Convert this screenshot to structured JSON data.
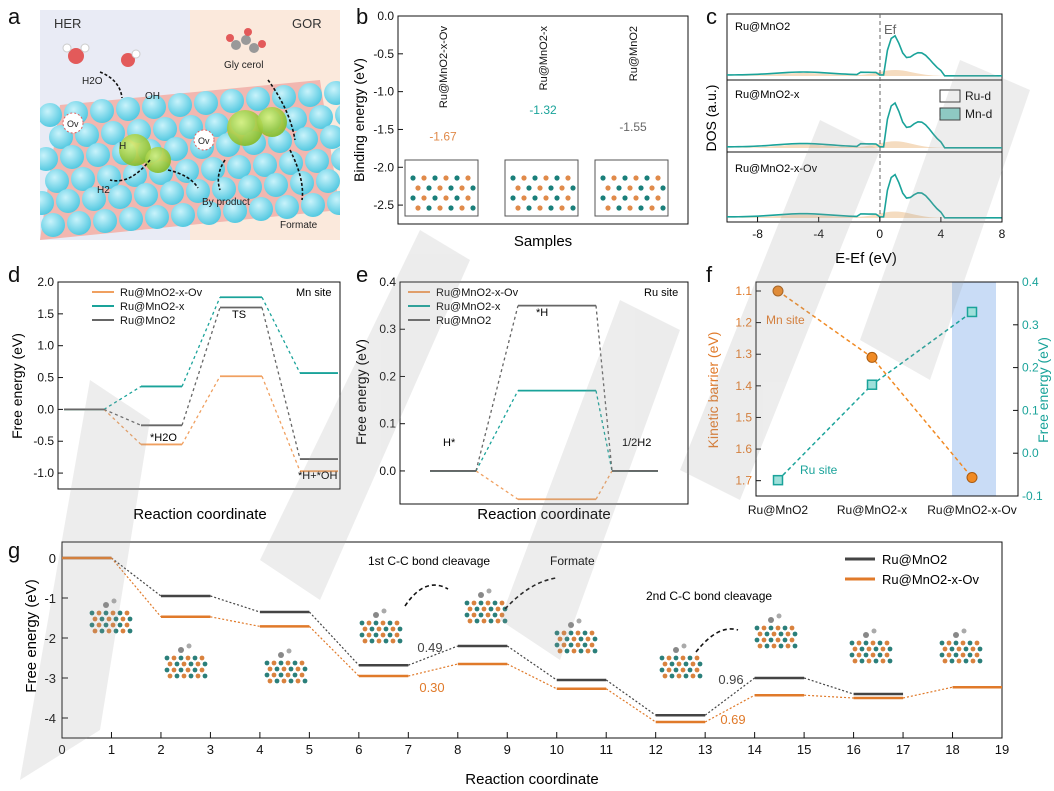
{
  "panel_labels": [
    "a",
    "b",
    "c",
    "d",
    "e",
    "f",
    "g"
  ],
  "panel_a": {
    "her": "HER",
    "gor": "GOR",
    "labels": [
      "H2O",
      "OH",
      "Ov",
      "H",
      "Ov",
      "H2",
      "Gly cerol",
      "By product",
      "Formate"
    ]
  },
  "chart_data": [
    {
      "panel": "b",
      "type": "bar",
      "xlabel": "Samples",
      "ylabel": "Binding energy (eV)",
      "ylim": [
        -2.75,
        0.0
      ],
      "yticks": [
        "0.0",
        "-0.5",
        "-1.0",
        "-1.5",
        "-2.0",
        "-2.5"
      ],
      "categories": [
        "Ru@MnO2-x-Ov",
        "Ru@MnO2-x",
        "Ru@MnO2"
      ],
      "values": [
        -1.67,
        -1.32,
        -1.55
      ],
      "value_labels": [
        "-1.67",
        "-1.32",
        "-1.55"
      ],
      "colors": [
        "#e08a4a",
        "#1aa39a",
        "#666666"
      ]
    },
    {
      "panel": "c",
      "type": "area",
      "xlabel": "E-Ef (eV)",
      "ylabel": "DOS (a.u.)",
      "xlim": [
        -10,
        8
      ],
      "xticks": [
        "-8",
        "-4",
        "0",
        "4",
        "8"
      ],
      "fermi_label": "Ef",
      "subplots": [
        "Ru@MnO2",
        "Ru@MnO2-x",
        "Ru@MnO2-x-Ov"
      ],
      "legend": [
        "Ru-d",
        "Mn-d"
      ],
      "colors": [
        "#f5dcc0",
        "#1aa39a"
      ]
    },
    {
      "panel": "d",
      "type": "line",
      "xlabel": "Reaction coordinate",
      "ylabel": "Free energy (eV)",
      "ylim": [
        -1.25,
        2.0
      ],
      "yticks": [
        "2.0",
        "1.5",
        "1.0",
        "0.5",
        "0.0",
        "-0.5",
        "-1.0"
      ],
      "site_label": "Mn site",
      "annotations": [
        "*H2O",
        "TS",
        "*H+*OH"
      ],
      "series": [
        {
          "name": "Ru@MnO2-x-Ov",
          "color": "#f0a060",
          "values": [
            0.0,
            -0.55,
            0.52,
            -0.97
          ]
        },
        {
          "name": "Ru@MnO2-x",
          "color": "#1aa39a",
          "values": [
            0.0,
            0.36,
            1.76,
            0.57
          ]
        },
        {
          "name": "Ru@MnO2",
          "color": "#666666",
          "values": [
            0.0,
            -0.25,
            1.6,
            -0.78
          ]
        }
      ]
    },
    {
      "panel": "e",
      "type": "line",
      "xlabel": "Reaction coordinate",
      "ylabel": "Free energy (eV)",
      "ylim": [
        -0.07,
        0.4
      ],
      "yticks": [
        "0.4",
        "0.3",
        "0.2",
        "0.1",
        "0.0"
      ],
      "site_label": "Ru site",
      "annotations": [
        "H*",
        "*H",
        "1/2H2"
      ],
      "series": [
        {
          "name": "Ru@MnO2-x-Ov",
          "color": "#f0a060",
          "values": [
            0.0,
            -0.06,
            0.0
          ]
        },
        {
          "name": "Ru@MnO2-x",
          "color": "#1aa39a",
          "values": [
            0.0,
            0.17,
            0.0
          ]
        },
        {
          "name": "Ru@MnO2",
          "color": "#666666",
          "values": [
            0.0,
            0.35,
            0.0
          ]
        }
      ]
    },
    {
      "panel": "f",
      "type": "scatter",
      "ylabel_left": "Kinetic barrier (eV)",
      "ylabel_right": "Free energy (eV)",
      "categories": [
        "Ru@MnO2",
        "Ru@MnO2-x",
        "Ru@MnO2-x-Ov"
      ],
      "ylim_left": [
        1.1,
        1.72
      ],
      "yticks_left": [
        "1.1",
        "1.2",
        "1.3",
        "1.4",
        "1.5",
        "1.6",
        "1.7"
      ],
      "ylim_right": [
        -0.1,
        0.4
      ],
      "yticks_right": [
        "0.4",
        "0.3",
        "0.2",
        "0.1",
        "0.0",
        "-0.1"
      ],
      "annotations": [
        "Mn site",
        "Ru site"
      ],
      "series": [
        {
          "name": "Mn site",
          "color": "#f08a24",
          "axis": "left",
          "values": [
            1.1,
            1.31,
            1.69
          ]
        },
        {
          "name": "Ru site",
          "color": "#1aa39a",
          "axis": "right",
          "values": [
            -0.063,
            0.16,
            0.33
          ]
        }
      ]
    },
    {
      "panel": "g",
      "type": "line",
      "xlabel": "Reaction coordinate",
      "ylabel": "Free energy (eV)",
      "xlim": [
        0,
        19
      ],
      "ylim": [
        -4.5,
        0.4
      ],
      "xticks": [
        "0",
        "1",
        "2",
        "3",
        "4",
        "5",
        "6",
        "7",
        "8",
        "9",
        "10",
        "11",
        "12",
        "13",
        "14",
        "15",
        "16",
        "17",
        "18",
        "19"
      ],
      "yticks": [
        "0",
        "-1",
        "-2",
        "-3",
        "-4"
      ],
      "annotations": [
        "1st C-C bond cleavage",
        "Formate",
        "2nd C-C bond cleavage"
      ],
      "barriers": [
        {
          "text": "0.49",
          "color": "#444444"
        },
        {
          "text": "0.30",
          "color": "#e07a2a"
        },
        {
          "text": "0.96",
          "color": "#444444"
        },
        {
          "text": "0.69",
          "color": "#e07a2a"
        }
      ],
      "series": [
        {
          "name": "Ru@MnO2",
          "color": "#444444",
          "values": [
            0,
            -0.95,
            -1.35,
            -2.68,
            -2.2,
            -3.05,
            -3.93,
            -3.0,
            -3.4,
            null
          ]
        },
        {
          "name": "Ru@MnO2-x-Ov",
          "color": "#e07a2a",
          "values": [
            0,
            -1.47,
            -1.71,
            -2.95,
            -2.65,
            -3.27,
            -4.1,
            -3.43,
            -3.5,
            -3.23
          ]
        }
      ]
    }
  ]
}
